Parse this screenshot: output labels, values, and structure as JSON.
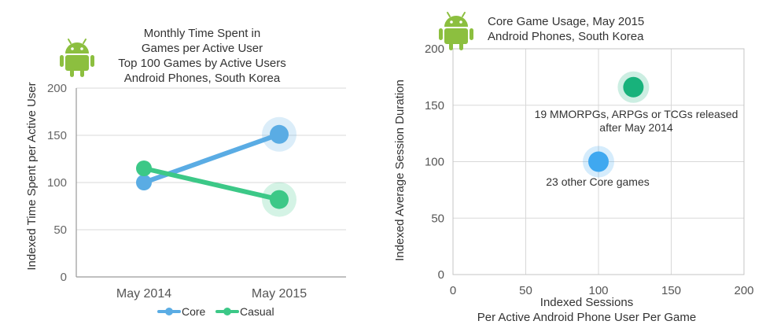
{
  "colors": {
    "core": "#5aace4",
    "casual": "#3cc887",
    "axis": "#9a9a9a",
    "grid": "#d8d8d8",
    "android": "#8cbf3f",
    "text": "#333333"
  },
  "chart_data": [
    {
      "type": "line",
      "title_lines": [
        "Monthly Time Spent in",
        "Games per Active User",
        "Top 100 Games by Active Users",
        "Android Phones, South Korea"
      ],
      "icon": "android-robot-icon",
      "xlabel": "",
      "ylabel": "Indexed Time Spent per Active User",
      "categories": [
        "May 2014",
        "May 2015"
      ],
      "ylim": [
        0,
        200
      ],
      "yticks": [
        "0",
        "50",
        "100",
        "150",
        "200"
      ],
      "grid": true,
      "legend": "bottom",
      "series": [
        {
          "name": "Core",
          "values": [
            100,
            151
          ],
          "color": "#5aace4"
        },
        {
          "name": "Casual",
          "values": [
            115,
            82
          ],
          "color": "#3cc887"
        }
      ]
    },
    {
      "type": "scatter",
      "title_lines": [
        "Core Game Usage, May 2015",
        "Android Phones, South Korea"
      ],
      "icon": "android-robot-icon",
      "xlabel_lines": [
        "Indexed Sessions",
        "Per Active Android Phone User Per Game"
      ],
      "ylabel": "Indexed Average Session Duration",
      "xlim": [
        0,
        200
      ],
      "ylim": [
        0,
        200
      ],
      "xticks": [
        "0",
        "50",
        "100",
        "150",
        "200"
      ],
      "yticks": [
        "0",
        "50",
        "100",
        "150",
        "200"
      ],
      "grid": true,
      "points": [
        {
          "x": 124,
          "y": 166,
          "color": "#18b27b",
          "label_lines": [
            "19 MMORPGs, ARPGs or TCGs released",
            "after May 2014"
          ]
        },
        {
          "x": 100,
          "y": 100,
          "color": "#3fa8f0",
          "label_lines": [
            "23 other Core games"
          ]
        }
      ]
    }
  ]
}
